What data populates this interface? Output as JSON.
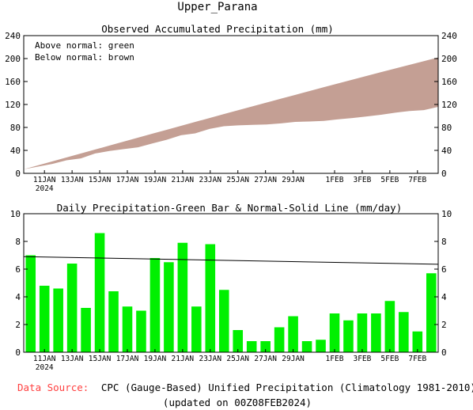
{
  "title": "Upper_Parana",
  "footer": {
    "source_label": "Data Source:",
    "source_text": "CPC (Gauge-Based) Unified Precipitation (Climatology 1981-2010)",
    "updated": "(updated on 00Z08FEB2024)"
  },
  "colors": {
    "shade_below": "#c49f94",
    "bar": "#00f000",
    "normal_line": "#000000",
    "source_label": "#ff4040"
  },
  "chart_data": [
    {
      "type": "area",
      "title": "Observed Accumulated Precipitation (mm)",
      "legend_lines": [
        "Above normal: green",
        "Below normal: brown"
      ],
      "ylim": [
        0,
        240
      ],
      "yticks": [
        0,
        40,
        80,
        120,
        160,
        200,
        240
      ],
      "x_tick_labels": [
        "11JAN",
        "13JAN",
        "15JAN",
        "17JAN",
        "19JAN",
        "21JAN",
        "23JAN",
        "25JAN",
        "27JAN",
        "29JAN",
        "1FEB",
        "3FEB",
        "5FEB",
        "7FEB"
      ],
      "x_tick_days": [
        1,
        3,
        5,
        7,
        9,
        11,
        13,
        15,
        17,
        19,
        22,
        24,
        26,
        28
      ],
      "year_label": "2024",
      "days": [
        0,
        1,
        2,
        3,
        4,
        5,
        6,
        7,
        8,
        9,
        10,
        11,
        12,
        13,
        14,
        15,
        16,
        17,
        18,
        19,
        20,
        21,
        22,
        23,
        24,
        25,
        26,
        27,
        28,
        29
      ],
      "series": [
        {
          "name": "Observed",
          "values": [
            7.0,
            11.8,
            16.4,
            22.8,
            26.0,
            34.6,
            39.0,
            42.3,
            45.3,
            52.0,
            58.5,
            66.4,
            69.7,
            77.5,
            82.0,
            83.6,
            84.4,
            85.2,
            87.0,
            89.6,
            90.4,
            91.3,
            94.1,
            96.4,
            99.2,
            102.0,
            105.7,
            108.6,
            110.1,
            115.8
          ]
        },
        {
          "name": "Normal",
          "values": [
            7.0,
            13.9,
            20.8,
            27.7,
            34.6,
            41.5,
            48.4,
            55.3,
            62.2,
            69.1,
            75.9,
            82.8,
            89.6,
            96.4,
            103.2,
            110.0,
            116.7,
            123.4,
            130.1,
            136.8,
            143.5,
            150.1,
            156.7,
            163.3,
            169.8,
            176.3,
            182.8,
            189.2,
            195.6,
            202.0
          ]
        }
      ]
    },
    {
      "type": "bar",
      "title": "Daily Precipitation-Green Bar & Normal-Solid Line (mm/day)",
      "ylim": [
        0,
        10
      ],
      "yticks": [
        0,
        2,
        4,
        6,
        8,
        10
      ],
      "x_tick_labels": [
        "11JAN",
        "13JAN",
        "15JAN",
        "17JAN",
        "19JAN",
        "21JAN",
        "23JAN",
        "25JAN",
        "27JAN",
        "29JAN",
        "1FEB",
        "3FEB",
        "5FEB",
        "7FEB"
      ],
      "x_tick_days": [
        1,
        3,
        5,
        7,
        9,
        11,
        13,
        15,
        17,
        19,
        22,
        24,
        26,
        28
      ],
      "year_label": "2024",
      "days": [
        0,
        1,
        2,
        3,
        4,
        5,
        6,
        7,
        8,
        9,
        10,
        11,
        12,
        13,
        14,
        15,
        16,
        17,
        18,
        19,
        20,
        21,
        22,
        23,
        24,
        25,
        26,
        27,
        28,
        29
      ],
      "values": [
        7.0,
        4.8,
        4.6,
        6.4,
        3.2,
        8.6,
        4.4,
        3.3,
        3.0,
        6.8,
        6.5,
        7.9,
        3.3,
        7.8,
        4.5,
        1.6,
        0.8,
        0.8,
        1.8,
        2.6,
        0.8,
        0.9,
        2.8,
        2.3,
        2.8,
        2.8,
        3.7,
        2.9,
        1.5,
        5.7
      ],
      "normal_line": {
        "x": [
          0,
          29
        ],
        "y": [
          6.9,
          6.35
        ]
      }
    }
  ]
}
